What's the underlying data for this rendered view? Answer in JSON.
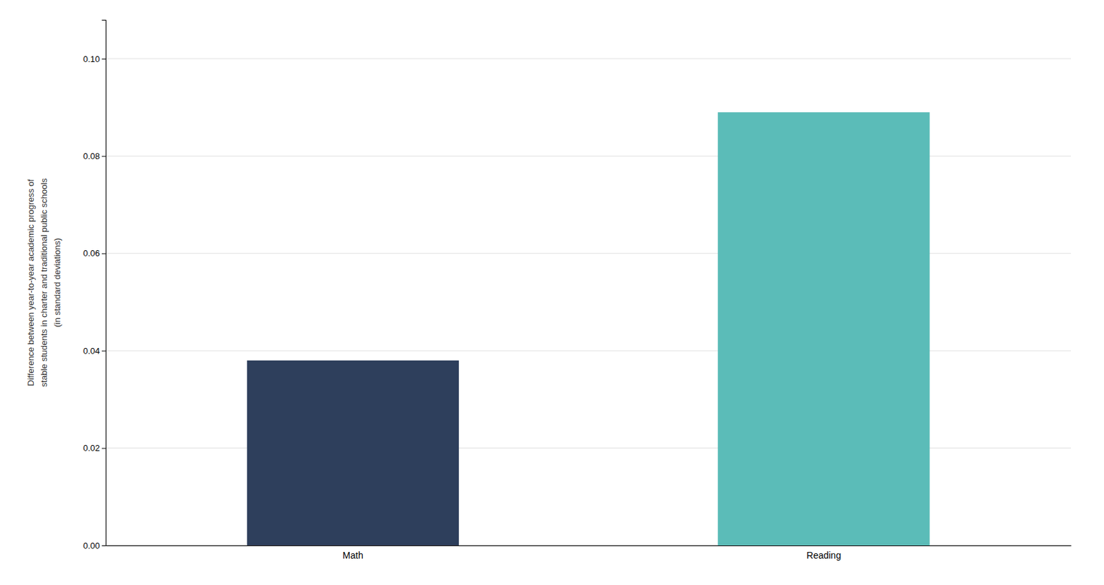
{
  "chart_data": {
    "type": "bar",
    "categories": [
      "Math",
      "Reading"
    ],
    "values": [
      0.038,
      0.089
    ],
    "colors": [
      "#2e3f5c",
      "#5bbcb8"
    ],
    "ylabel": [
      "Difference between year-to-year academic progress of",
      "stable students in charter and traditional public schools",
      "(in standard deviations)"
    ],
    "ylim": [
      0,
      0.108
    ],
    "yticks": [
      {
        "value": 0,
        "label": "0.00"
      },
      0.02,
      0.04,
      0.06,
      0.08,
      {
        "value": 0.1,
        "label": "0.10"
      }
    ],
    "grid": true
  }
}
